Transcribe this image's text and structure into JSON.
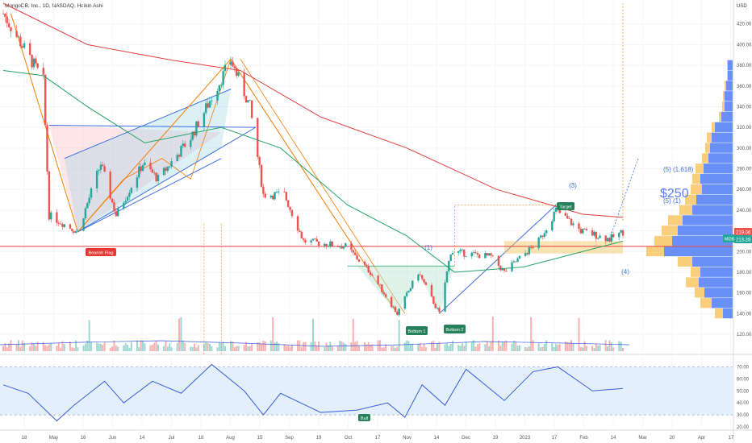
{
  "header": {
    "title": "MongoDB, Inc., 1D, NASDAQ, Heikin Ashi"
  },
  "price_axis": {
    "currency": "USD",
    "min": 120,
    "max": 440,
    "ticks": [
      "120.00",
      "140.00",
      "160.00",
      "180.00",
      "200.00",
      "220.00",
      "240.00",
      "260.00",
      "280.00",
      "300.00",
      "320.00",
      "340.00",
      "360.00",
      "380.00",
      "400.00",
      "420.00"
    ],
    "last_price_label": "219.06",
    "ticker_label": "MDB",
    "ticker_price_label": "213.28"
  },
  "rsi_axis": {
    "ticks": [
      "70.00",
      "60.00",
      "50.00",
      "40.00",
      "30.00",
      "20.00"
    ],
    "upper": 70,
    "lower": 30
  },
  "time_axis": {
    "labels": [
      "18",
      "May",
      "16",
      "Jun",
      "14",
      "Jul",
      "18",
      "Aug",
      "15",
      "Sep",
      "19",
      "Oct",
      "17",
      "Nov",
      "14",
      "Dec",
      "19",
      "2023",
      "17",
      "Feb",
      "14",
      "Mar",
      "20",
      "Apr",
      "17"
    ]
  },
  "annotations": {
    "bearish_flag": "Bearish Flag",
    "bottom_1": "Bottom 1",
    "bottom_2": "Bottom 2",
    "target": "Target",
    "bull": "Bull",
    "wave_1": "(1)",
    "wave_3": "(3)",
    "wave_4": "(4)",
    "wave_5_1618": "(5) (1.618)",
    "wave_5_1": "(5) (1)",
    "price_target": "$250"
  },
  "colors": {
    "up": "#26a69a",
    "down": "#ef5350",
    "ma_fast": "#26a269",
    "ma_slow": "#e0403f",
    "rsi_line": "#3b5bdb",
    "rsi_band": "#e3f0fb",
    "fib_orange": "#f57c00",
    "channel_blue": "#3d6fe0",
    "vp_up": "#4f7cf5",
    "vp_down": "#f7c35b"
  },
  "chart_data": {
    "type": "candlestick",
    "date_range": [
      "2022-04-18",
      "2023-03-08"
    ],
    "price_path": [
      {
        "date": "2022-04-18",
        "price": 430
      },
      {
        "date": "2022-05-09",
        "price": 365
      },
      {
        "date": "2022-05-12",
        "price": 235
      },
      {
        "date": "2022-05-27",
        "price": 219
      },
      {
        "date": "2022-06-08",
        "price": 285
      },
      {
        "date": "2022-06-16",
        "price": 235
      },
      {
        "date": "2022-06-30",
        "price": 285
      },
      {
        "date": "2022-07-08",
        "price": 270
      },
      {
        "date": "2022-07-25",
        "price": 310
      },
      {
        "date": "2022-08-15",
        "price": 385
      },
      {
        "date": "2022-08-25",
        "price": 340
      },
      {
        "date": "2022-09-01",
        "price": 255
      },
      {
        "date": "2022-09-12",
        "price": 255
      },
      {
        "date": "2022-09-22",
        "price": 210
      },
      {
        "date": "2022-10-14",
        "price": 205
      },
      {
        "date": "2022-10-27",
        "price": 180
      },
      {
        "date": "2022-11-10",
        "price": 140
      },
      {
        "date": "2022-11-21",
        "price": 180
      },
      {
        "date": "2022-12-02",
        "price": 140
      },
      {
        "date": "2022-12-08",
        "price": 200
      },
      {
        "date": "2022-12-29",
        "price": 195
      },
      {
        "date": "2023-01-05",
        "price": 180
      },
      {
        "date": "2023-01-23",
        "price": 210
      },
      {
        "date": "2023-02-01",
        "price": 240
      },
      {
        "date": "2023-02-14",
        "price": 220
      },
      {
        "date": "2023-03-01",
        "price": 212
      },
      {
        "date": "2023-03-08",
        "price": 219
      }
    ],
    "ma_slow": [
      {
        "date": "2022-04-18",
        "price": 440
      },
      {
        "date": "2022-06-01",
        "price": 400
      },
      {
        "date": "2022-07-15",
        "price": 385
      },
      {
        "date": "2022-08-20",
        "price": 375
      },
      {
        "date": "2022-10-01",
        "price": 330
      },
      {
        "date": "2022-11-15",
        "price": 300
      },
      {
        "date": "2023-01-01",
        "price": 260
      },
      {
        "date": "2023-02-15",
        "price": 236
      },
      {
        "date": "2023-03-08",
        "price": 233
      }
    ],
    "ma_fast": [
      {
        "date": "2022-04-18",
        "price": 375
      },
      {
        "date": "2022-05-09",
        "price": 370
      },
      {
        "date": "2022-06-01",
        "price": 340
      },
      {
        "date": "2022-07-01",
        "price": 305
      },
      {
        "date": "2022-08-10",
        "price": 320
      },
      {
        "date": "2022-09-10",
        "price": 300
      },
      {
        "date": "2022-10-15",
        "price": 245
      },
      {
        "date": "2022-11-15",
        "price": 215
      },
      {
        "date": "2022-12-10",
        "price": 180
      },
      {
        "date": "2023-01-15",
        "price": 185
      },
      {
        "date": "2023-02-15",
        "price": 200
      },
      {
        "date": "2023-03-08",
        "price": 210
      }
    ],
    "horizontal_levels": [
      {
        "price": 205,
        "color": "#e0403f"
      }
    ],
    "rsi": [
      {
        "date": "2022-04-18",
        "value": 55
      },
      {
        "date": "2022-05-01",
        "value": 48
      },
      {
        "date": "2022-05-16",
        "value": 25
      },
      {
        "date": "2022-05-25",
        "value": 38
      },
      {
        "date": "2022-06-10",
        "value": 58
      },
      {
        "date": "2022-06-20",
        "value": 40
      },
      {
        "date": "2022-07-05",
        "value": 58
      },
      {
        "date": "2022-07-20",
        "value": 48
      },
      {
        "date": "2022-08-05",
        "value": 72
      },
      {
        "date": "2022-08-22",
        "value": 50
      },
      {
        "date": "2022-09-01",
        "value": 30
      },
      {
        "date": "2022-09-10",
        "value": 48
      },
      {
        "date": "2022-10-01",
        "value": 32
      },
      {
        "date": "2022-10-20",
        "value": 34
      },
      {
        "date": "2022-11-05",
        "value": 40
      },
      {
        "date": "2022-11-14",
        "value": 28
      },
      {
        "date": "2022-11-23",
        "value": 55
      },
      {
        "date": "2022-12-05",
        "value": 38
      },
      {
        "date": "2022-12-16",
        "value": 68
      },
      {
        "date": "2023-01-05",
        "value": 42
      },
      {
        "date": "2023-01-20",
        "value": 66
      },
      {
        "date": "2023-02-02",
        "value": 70
      },
      {
        "date": "2023-02-20",
        "value": 50
      },
      {
        "date": "2023-03-08",
        "value": 52
      }
    ],
    "volume_profile": [
      {
        "price": 140,
        "up": 12,
        "down": 10
      },
      {
        "price": 150,
        "up": 26,
        "down": 14
      },
      {
        "price": 160,
        "up": 35,
        "down": 12
      },
      {
        "price": 170,
        "up": 42,
        "down": 16
      },
      {
        "price": 180,
        "up": 40,
        "down": 12
      },
      {
        "price": 190,
        "up": 50,
        "down": 18
      },
      {
        "price": 200,
        "up": 85,
        "down": 22
      },
      {
        "price": 210,
        "up": 75,
        "down": 22
      },
      {
        "price": 220,
        "up": 68,
        "down": 20
      },
      {
        "price": 230,
        "up": 62,
        "down": 18
      },
      {
        "price": 240,
        "up": 50,
        "down": 16
      },
      {
        "price": 250,
        "up": 45,
        "down": 14
      },
      {
        "price": 260,
        "up": 38,
        "down": 14
      },
      {
        "price": 270,
        "up": 40,
        "down": 10
      },
      {
        "price": 280,
        "up": 36,
        "down": 10
      },
      {
        "price": 290,
        "up": 30,
        "down": 8
      },
      {
        "price": 300,
        "up": 28,
        "down": 6
      },
      {
        "price": 310,
        "up": 26,
        "down": 6
      },
      {
        "price": 320,
        "up": 22,
        "down": 4
      },
      {
        "price": 330,
        "up": 14,
        "down": 3
      },
      {
        "price": 340,
        "up": 10,
        "down": 3
      },
      {
        "price": 350,
        "up": 10,
        "down": 2
      },
      {
        "price": 360,
        "up": 8,
        "down": 2
      },
      {
        "price": 370,
        "up": 6,
        "down": 1
      },
      {
        "price": 380,
        "up": 6,
        "down": 1
      }
    ]
  }
}
